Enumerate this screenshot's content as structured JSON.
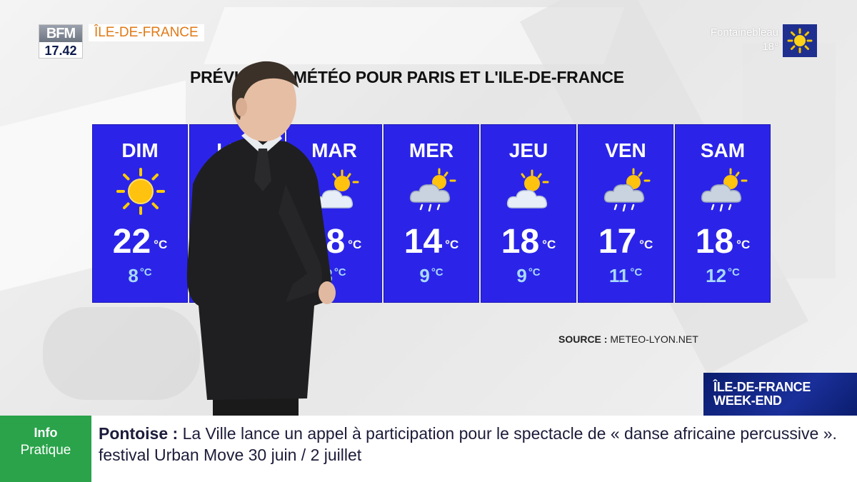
{
  "channel": {
    "logo_text": "BFM",
    "time": "17.42",
    "region": "ÎLE-DE-FRANCE"
  },
  "city_weather": {
    "city": "Fontainebleau",
    "temperature": "18°",
    "icon": "sun-icon"
  },
  "forecast": {
    "title": "PRÉVISIONS MÉTÉO POUR PARIS ET L'ILE-DE-FRANCE",
    "unit": "°C",
    "days": [
      {
        "day": "DIM",
        "icon": "sun-icon",
        "max": "22",
        "min": "8"
      },
      {
        "day": "LUN",
        "icon": "sun-icon",
        "max": "",
        "min": ""
      },
      {
        "day": "MAR",
        "icon": "sun-cloud-icon",
        "max": "18",
        "min": "8"
      },
      {
        "day": "MER",
        "icon": "sun-cloud-rain-icon",
        "max": "14",
        "min": "9"
      },
      {
        "day": "JEU",
        "icon": "sun-cloud-icon",
        "max": "18",
        "min": "9"
      },
      {
        "day": "VEN",
        "icon": "sun-cloud-rain-icon",
        "max": "17",
        "min": "11"
      },
      {
        "day": "SAM",
        "icon": "sun-cloud-rain-icon",
        "max": "18",
        "min": "12"
      }
    ],
    "source_label": "SOURCE :",
    "source_value": "METEO-LYON.NET",
    "colors": {
      "panel": "#2b24e8",
      "min_temp": "#a9d9ff"
    }
  },
  "show_tag": {
    "line1": "ÎLE-DE-FRANCE",
    "line2": "WEEK-END"
  },
  "ticker": {
    "label_line1": "Info",
    "label_line2": "Pratique",
    "place": "Pontoise",
    "separator": " : ",
    "message": "La Ville lance un appel à participation pour le spectacle de « danse africaine percussive ». festival Urban Move 30 juin / 2 juillet"
  }
}
